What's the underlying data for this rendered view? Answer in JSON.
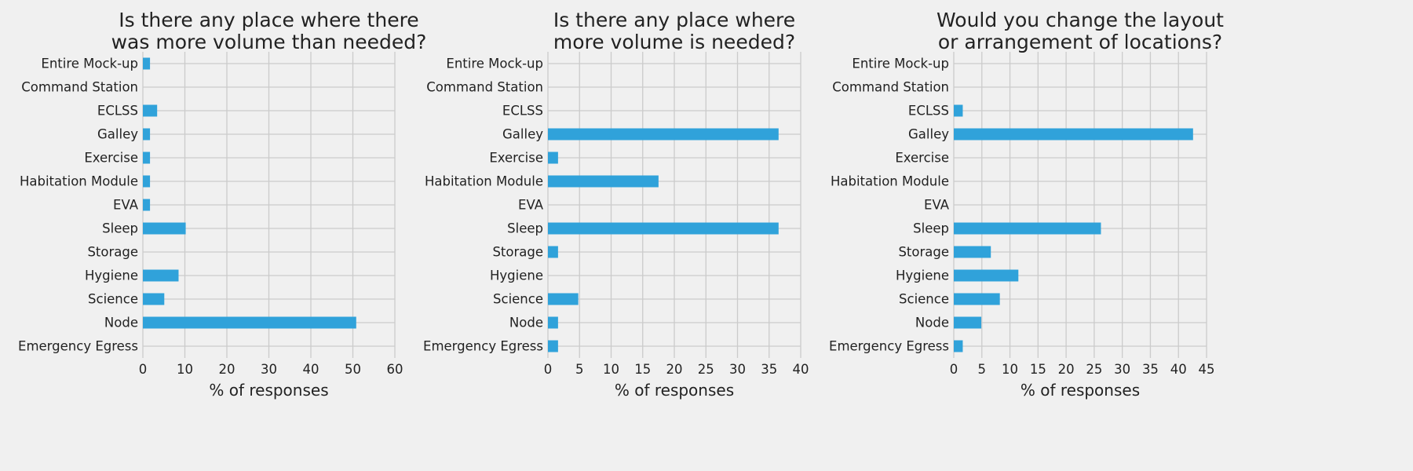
{
  "chart_data": [
    {
      "type": "bar",
      "orientation": "horizontal",
      "title": [
        "Is there any place where there",
        "was more volume than needed?"
      ],
      "xlabel": "% of responses",
      "ylabel": "",
      "xlim": [
        0,
        60
      ],
      "xticks": [
        0,
        10,
        20,
        30,
        40,
        50,
        60
      ],
      "grid": true,
      "color": "#30a2da",
      "categories": [
        "Entire Mock-up",
        "Command Station",
        "ECLSS",
        "Galley",
        "Exercise",
        "Habitation Module",
        "EVA",
        "Sleep",
        "Storage",
        "Hygiene",
        "Science",
        "Node",
        "Emergency Egress"
      ],
      "values": [
        1.7,
        0,
        3.4,
        1.7,
        1.7,
        1.7,
        1.7,
        10.2,
        0,
        8.5,
        5.1,
        50.8,
        0
      ]
    },
    {
      "type": "bar",
      "orientation": "horizontal",
      "title": [
        "Is there any place where",
        "more volume is needed?"
      ],
      "xlabel": "% of responses",
      "ylabel": "",
      "xlim": [
        0,
        40
      ],
      "xticks": [
        0,
        5,
        10,
        15,
        20,
        25,
        30,
        35,
        40
      ],
      "grid": true,
      "color": "#30a2da",
      "categories": [
        "Entire Mock-up",
        "Command Station",
        "ECLSS",
        "Galley",
        "Exercise",
        "Habitation Module",
        "EVA",
        "Sleep",
        "Storage",
        "Hygiene",
        "Science",
        "Node",
        "Emergency Egress"
      ],
      "values": [
        0,
        0,
        0,
        36.5,
        1.6,
        17.5,
        0,
        36.5,
        1.6,
        0,
        4.8,
        1.6,
        1.6
      ]
    },
    {
      "type": "bar",
      "orientation": "horizontal",
      "title": [
        "Would you change the layout",
        "or arrangement of locations?"
      ],
      "xlabel": "% of responses",
      "ylabel": "",
      "xlim": [
        0,
        45
      ],
      "xticks": [
        0,
        5,
        10,
        15,
        20,
        25,
        30,
        35,
        40,
        45
      ],
      "grid": true,
      "color": "#30a2da",
      "categories": [
        "Entire Mock-up",
        "Command Station",
        "ECLSS",
        "Galley",
        "Exercise",
        "Habitation Module",
        "EVA",
        "Sleep",
        "Storage",
        "Hygiene",
        "Science",
        "Node",
        "Emergency Egress"
      ],
      "values": [
        0,
        0,
        1.6,
        42.6,
        0,
        0,
        0,
        26.2,
        6.6,
        11.5,
        8.2,
        4.9,
        1.6
      ]
    }
  ]
}
